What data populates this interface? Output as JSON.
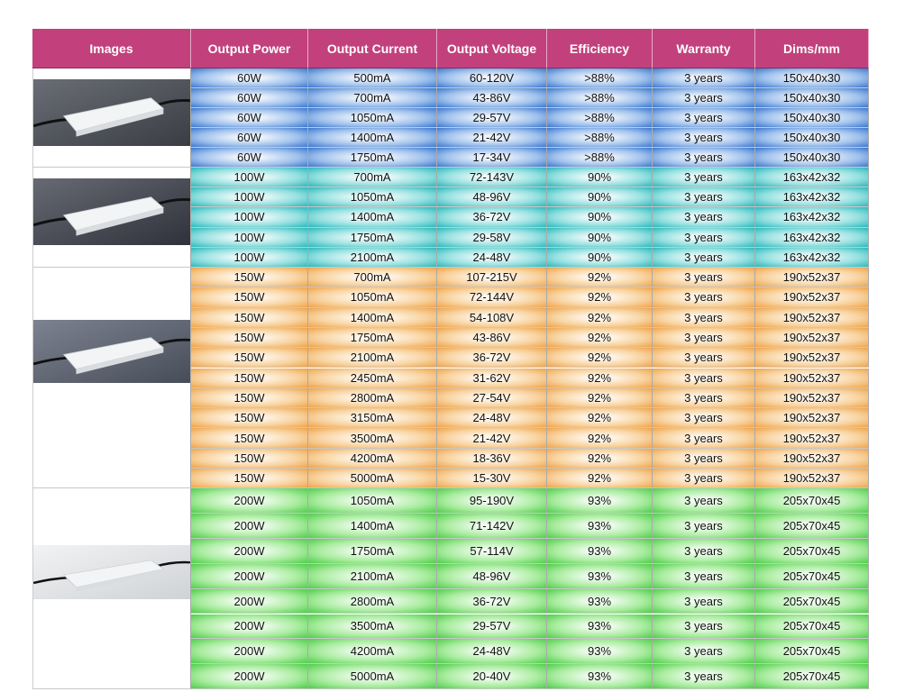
{
  "header": [
    "Images",
    "Output Power",
    "Output Current",
    "Output Voltage",
    "Efficiency",
    "Warranty",
    "Dims/mm"
  ],
  "groups": [
    {
      "rows": [
        [
          "60W",
          "500mA",
          "60-120V",
          ">88%",
          "3 years",
          "150x40x30"
        ],
        [
          "60W",
          "700mA",
          "43-86V",
          ">88%",
          "3 years",
          "150x40x30"
        ],
        [
          "60W",
          "1050mA",
          "29-57V",
          ">88%",
          "3 years",
          "150x40x30"
        ],
        [
          "60W",
          "1400mA",
          "21-42V",
          ">88%",
          "3 years",
          "150x40x30"
        ],
        [
          "60W",
          "1750mA",
          "17-34V",
          ">88%",
          "3 years",
          "150x40x30"
        ]
      ]
    },
    {
      "rows": [
        [
          "100W",
          "700mA",
          "72-143V",
          "90%",
          "3 years",
          "163x42x32"
        ],
        [
          "100W",
          "1050mA",
          "48-96V",
          "90%",
          "3 years",
          "163x42x32"
        ],
        [
          "100W",
          "1400mA",
          "36-72V",
          "90%",
          "3 years",
          "163x42x32"
        ],
        [
          "100W",
          "1750mA",
          "29-58V",
          "90%",
          "3 years",
          "163x42x32"
        ],
        [
          "100W",
          "2100mA",
          "24-48V",
          "90%",
          "3 years",
          "163x42x32"
        ]
      ]
    },
    {
      "rows": [
        [
          "150W",
          "700mA",
          "107-215V",
          "92%",
          "3 years",
          "190x52x37"
        ],
        [
          "150W",
          "1050mA",
          "72-144V",
          "92%",
          "3 years",
          "190x52x37"
        ],
        [
          "150W",
          "1400mA",
          "54-108V",
          "92%",
          "3 years",
          "190x52x37"
        ],
        [
          "150W",
          "1750mA",
          "43-86V",
          "92%",
          "3 years",
          "190x52x37"
        ],
        [
          "150W",
          "2100mA",
          "36-72V",
          "92%",
          "3 years",
          "190x52x37"
        ],
        [
          "150W",
          "2450mA",
          "31-62V",
          "92%",
          "3 years",
          "190x52x37"
        ],
        [
          "150W",
          "2800mA",
          "27-54V",
          "92%",
          "3 years",
          "190x52x37"
        ],
        [
          "150W",
          "3150mA",
          "24-48V",
          "92%",
          "3 years",
          "190x52x37"
        ],
        [
          "150W",
          "3500mA",
          "21-42V",
          "92%",
          "3 years",
          "190x52x37"
        ],
        [
          "150W",
          "4200mA",
          "18-36V",
          "92%",
          "3 years",
          "190x52x37"
        ],
        [
          "150W",
          "5000mA",
          "15-30V",
          "92%",
          "3 years",
          "190x52x37"
        ]
      ]
    },
    {
      "rows": [
        [
          "200W",
          "1050mA",
          "95-190V",
          "93%",
          "3 years",
          "205x70x45"
        ],
        [
          "200W",
          "1400mA",
          "71-142V",
          "93%",
          "3 years",
          "205x70x45"
        ],
        [
          "200W",
          "1750mA",
          "57-114V",
          "93%",
          "3 years",
          "205x70x45"
        ],
        [
          "200W",
          "2100mA",
          "48-96V",
          "93%",
          "3 years",
          "205x70x45"
        ],
        [
          "200W",
          "2800mA",
          "36-72V",
          "93%",
          "3 years",
          "205x70x45"
        ],
        [
          "200W",
          "3500mA",
          "29-57V",
          "93%",
          "3 years",
          "205x70x45"
        ],
        [
          "200W",
          "4200mA",
          "24-48V",
          "93%",
          "3 years",
          "205x70x45"
        ],
        [
          "200W",
          "5000mA",
          "20-40V",
          "93%",
          "3 years",
          "205x70x45"
        ]
      ]
    }
  ]
}
